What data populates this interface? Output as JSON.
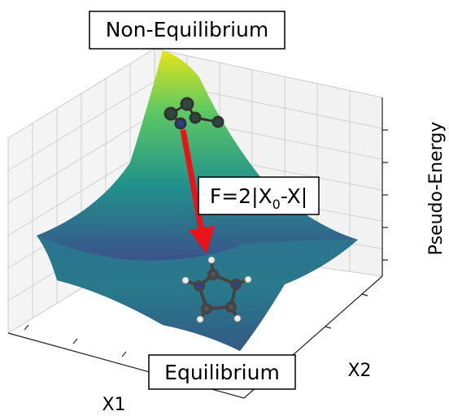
{
  "labels": {
    "top": "Non-Equilibrium",
    "bottom": "Equilibrium",
    "x1": "X1",
    "x2": "X2",
    "z": "Pseudo-Energy"
  },
  "formula": {
    "before": "F=2|X",
    "subscript": "0",
    "after": "-X|"
  }
}
